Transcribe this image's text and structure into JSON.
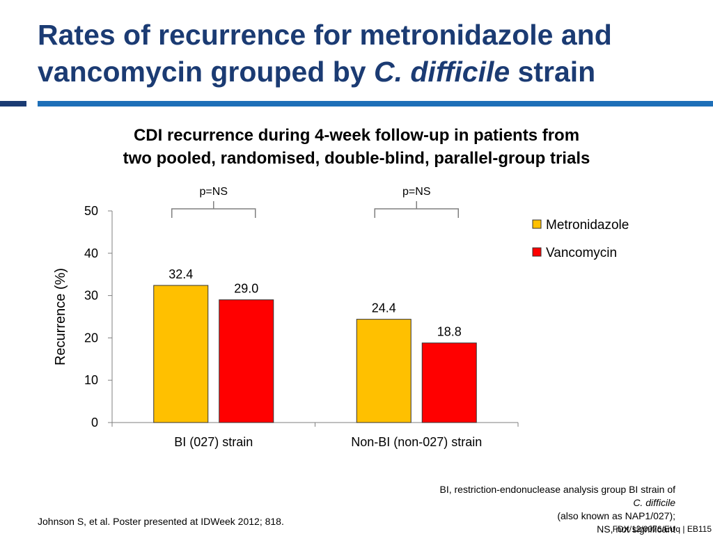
{
  "title": {
    "line1": "Rates of recurrence for metronidazole and",
    "line2_prefix": "vancomycin grouped by ",
    "line2_italic": "C. difficile",
    "line2_suffix": " strain"
  },
  "subtitle": {
    "line1": "CDI recurrence during 4-week follow-up in patients from",
    "line2": "two pooled, randomised, double-blind, parallel-group trials"
  },
  "colors": {
    "title": "#1b3b73",
    "accent": "#1e6fb8",
    "metronidazole": "#ffc000",
    "vancomycin": "#ff0000"
  },
  "chart_data": {
    "type": "bar",
    "categories": [
      "BI (027) strain",
      "Non-BI (non-027) strain"
    ],
    "series": [
      {
        "name": "Metronidazole",
        "values": [
          32.4,
          24.4
        ],
        "labels": [
          "32.4",
          "24.4"
        ],
        "color": "#ffc000"
      },
      {
        "name": "Vancomycin",
        "values": [
          29.0,
          18.8
        ],
        "labels": [
          "29.0",
          "18.8"
        ],
        "color": "#ff0000"
      }
    ],
    "ylabel": "Recurrence (%)",
    "ylim": [
      0,
      50
    ],
    "yticks": [
      0,
      10,
      20,
      30,
      40,
      50
    ],
    "significance": [
      "p=NS",
      "p=NS"
    ],
    "legend_position": "right",
    "grid": false
  },
  "footnote": {
    "line1": "BI, restriction-endonuclease analysis group BI strain of",
    "line2_italic": "C. difficile",
    "line2_rest": " (also known as NAP1/027);",
    "line3": "NS, not significant"
  },
  "citation": "Johnson S, et al. Poster presented at IDWeek 2012; 818.",
  "doc_code": "FDX/12/0076/EUq | EB115"
}
